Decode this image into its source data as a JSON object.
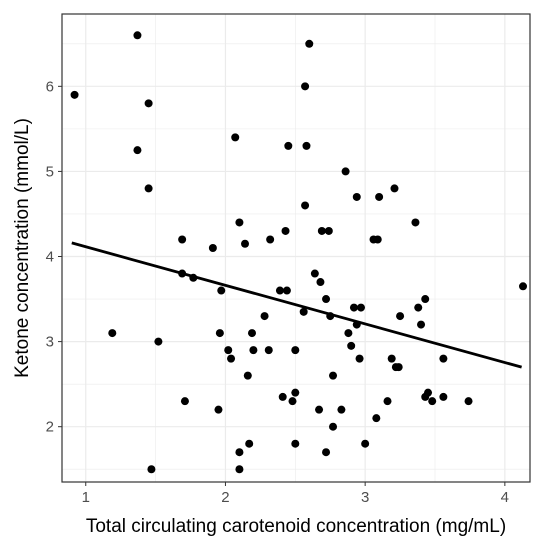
{
  "chart_data": {
    "type": "scatter",
    "title": "",
    "xlabel": "Total circulating carotenoid concentration (mg/mL)",
    "ylabel": "Ketone concentration (mmol/L)",
    "xlim": [
      0.83,
      4.18
    ],
    "ylim": [
      1.35,
      6.85
    ],
    "x_ticks": [
      1,
      2,
      3,
      4
    ],
    "y_ticks": [
      2,
      3,
      4,
      5,
      6
    ],
    "x_tick_labels": [
      "1",
      "2",
      "3",
      "4"
    ],
    "y_tick_labels": [
      "2",
      "3",
      "4",
      "5",
      "6"
    ],
    "grid": true,
    "legend": "none",
    "colors": {
      "points": "#000000",
      "trend": "#000000",
      "grid": "#ebebeb",
      "border": "#333333"
    },
    "trend_line": {
      "x": [
        0.9,
        4.12
      ],
      "y": [
        4.16,
        2.7
      ]
    },
    "points": [
      {
        "x": 0.92,
        "y": 5.9
      },
      {
        "x": 1.37,
        "y": 6.6
      },
      {
        "x": 1.37,
        "y": 5.25
      },
      {
        "x": 1.45,
        "y": 5.8
      },
      {
        "x": 1.45,
        "y": 4.8
      },
      {
        "x": 1.19,
        "y": 3.1
      },
      {
        "x": 1.52,
        "y": 3.0
      },
      {
        "x": 1.47,
        "y": 1.5
      },
      {
        "x": 1.69,
        "y": 4.2
      },
      {
        "x": 1.69,
        "y": 3.8
      },
      {
        "x": 1.77,
        "y": 3.75
      },
      {
        "x": 1.71,
        "y": 2.3
      },
      {
        "x": 1.91,
        "y": 4.1
      },
      {
        "x": 1.97,
        "y": 3.6
      },
      {
        "x": 1.96,
        "y": 3.1
      },
      {
        "x": 1.95,
        "y": 2.2
      },
      {
        "x": 2.02,
        "y": 2.9
      },
      {
        "x": 2.04,
        "y": 2.8
      },
      {
        "x": 2.07,
        "y": 5.4
      },
      {
        "x": 2.1,
        "y": 4.4
      },
      {
        "x": 2.14,
        "y": 4.15
      },
      {
        "x": 2.16,
        "y": 2.6
      },
      {
        "x": 2.19,
        "y": 3.1
      },
      {
        "x": 2.2,
        "y": 2.9
      },
      {
        "x": 2.1,
        "y": 1.7
      },
      {
        "x": 2.1,
        "y": 1.5
      },
      {
        "x": 2.17,
        "y": 1.8
      },
      {
        "x": 2.28,
        "y": 3.3
      },
      {
        "x": 2.32,
        "y": 4.2
      },
      {
        "x": 2.31,
        "y": 2.9
      },
      {
        "x": 2.39,
        "y": 3.6
      },
      {
        "x": 2.43,
        "y": 4.3
      },
      {
        "x": 2.45,
        "y": 5.3
      },
      {
        "x": 2.44,
        "y": 3.6
      },
      {
        "x": 2.41,
        "y": 2.35
      },
      {
        "x": 2.48,
        "y": 2.3
      },
      {
        "x": 2.5,
        "y": 2.4
      },
      {
        "x": 2.5,
        "y": 2.9
      },
      {
        "x": 2.5,
        "y": 1.8
      },
      {
        "x": 2.57,
        "y": 6.0
      },
      {
        "x": 2.6,
        "y": 6.5
      },
      {
        "x": 2.58,
        "y": 5.3
      },
      {
        "x": 2.57,
        "y": 4.6
      },
      {
        "x": 2.56,
        "y": 3.35
      },
      {
        "x": 2.64,
        "y": 3.8
      },
      {
        "x": 2.68,
        "y": 3.7
      },
      {
        "x": 2.69,
        "y": 4.3
      },
      {
        "x": 2.74,
        "y": 4.3
      },
      {
        "x": 2.72,
        "y": 3.5
      },
      {
        "x": 2.75,
        "y": 3.3
      },
      {
        "x": 2.77,
        "y": 2.6
      },
      {
        "x": 2.67,
        "y": 2.2
      },
      {
        "x": 2.77,
        "y": 2.0
      },
      {
        "x": 2.72,
        "y": 1.7
      },
      {
        "x": 2.83,
        "y": 2.2
      },
      {
        "x": 2.86,
        "y": 5.0
      },
      {
        "x": 2.88,
        "y": 3.1
      },
      {
        "x": 2.9,
        "y": 2.95
      },
      {
        "x": 2.92,
        "y": 3.4
      },
      {
        "x": 2.94,
        "y": 3.2
      },
      {
        "x": 2.94,
        "y": 4.7
      },
      {
        "x": 2.97,
        "y": 3.4
      },
      {
        "x": 2.96,
        "y": 2.8
      },
      {
        "x": 3.0,
        "y": 1.8
      },
      {
        "x": 3.06,
        "y": 4.2
      },
      {
        "x": 3.09,
        "y": 4.2
      },
      {
        "x": 3.1,
        "y": 4.7
      },
      {
        "x": 3.08,
        "y": 2.1
      },
      {
        "x": 3.16,
        "y": 2.3
      },
      {
        "x": 3.19,
        "y": 2.8
      },
      {
        "x": 3.22,
        "y": 2.7
      },
      {
        "x": 3.21,
        "y": 4.8
      },
      {
        "x": 3.24,
        "y": 2.7
      },
      {
        "x": 3.25,
        "y": 3.3
      },
      {
        "x": 3.36,
        "y": 4.4
      },
      {
        "x": 3.38,
        "y": 3.4
      },
      {
        "x": 3.4,
        "y": 3.2
      },
      {
        "x": 3.43,
        "y": 3.5
      },
      {
        "x": 3.43,
        "y": 2.35
      },
      {
        "x": 3.45,
        "y": 2.4
      },
      {
        "x": 3.48,
        "y": 2.3
      },
      {
        "x": 3.56,
        "y": 2.8
      },
      {
        "x": 3.56,
        "y": 2.35
      },
      {
        "x": 3.74,
        "y": 2.3
      },
      {
        "x": 4.13,
        "y": 3.65
      }
    ]
  }
}
